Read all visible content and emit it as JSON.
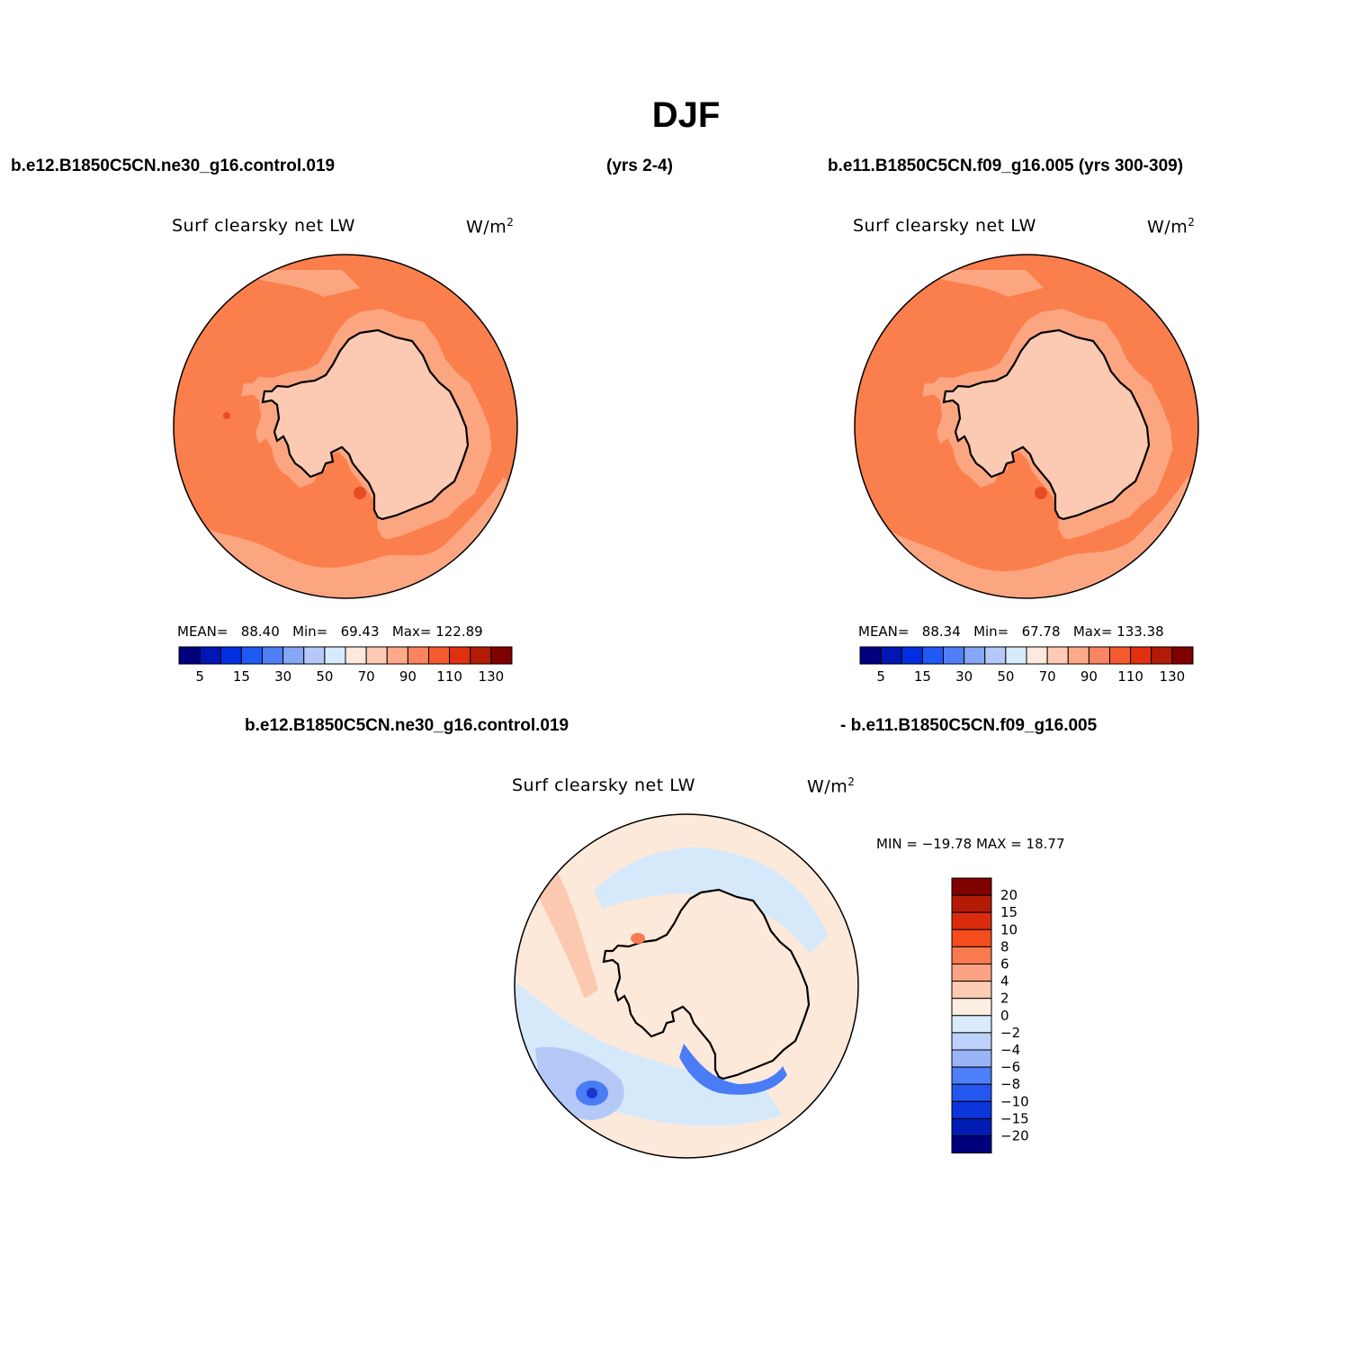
{
  "title": "DJF",
  "case1": "b.e12.B1850C5CN.ne30_g16.control.019",
  "case1_years": "(yrs 2-4)",
  "case2": "b.e11.B1850C5CN.f09_g16.005 (yrs 300-309)",
  "diff_left": "b.e12.B1850C5CN.ne30_g16.control.019",
  "diff_right": "- b.e11.B1850C5CN.f09_g16.005",
  "panels": [
    {
      "variable": "Surf clearsky net LW",
      "units": "W/m",
      "units_sup": "2",
      "stats": {
        "mean_label": "MEAN=",
        "mean": "88.40",
        "min_label": "Min=",
        "min": "69.43",
        "max_label": "Max=",
        "max": "122.89"
      }
    },
    {
      "variable": "Surf clearsky net LW",
      "units": "W/m",
      "units_sup": "2",
      "stats": {
        "mean_label": "MEAN=",
        "mean": "88.34",
        "min_label": "Min=",
        "min": "67.78",
        "max_label": "Max=",
        "max": "133.38"
      }
    }
  ],
  "diff_panel": {
    "variable": "Surf clearsky net LW",
    "units": "W/m",
    "units_sup": "2",
    "minmax": "MIN = −19.78 MAX =   18.77"
  },
  "colorbar_h": {
    "colors": [
      "#00007f",
      "#0017b4",
      "#002ee0",
      "#1f5af5",
      "#4f7ff8",
      "#86a6f6",
      "#b4c9f9",
      "#d7eafc",
      "#fde9db",
      "#fdcbb3",
      "#fca98a",
      "#fa845f",
      "#f65b30",
      "#e03010",
      "#b31b06",
      "#800000"
    ],
    "labels": [
      "5",
      "15",
      "30",
      "50",
      "70",
      "90",
      "110",
      "130"
    ]
  },
  "colorbar_v": {
    "colors": [
      "#800000",
      "#b31b06",
      "#da2c0c",
      "#f54d1e",
      "#f97a4e",
      "#fca383",
      "#fdcab2",
      "#fdeee2",
      "#d8eafc",
      "#bcd2fa",
      "#99b5f7",
      "#4c7ff8",
      "#2456f0",
      "#0c36dc",
      "#001cb4",
      "#00007f"
    ],
    "labels": [
      "20",
      "15",
      "10",
      "8",
      "6",
      "4",
      "2",
      "0",
      "−2",
      "−4",
      "−6",
      "−8",
      "−10",
      "−15",
      "−20"
    ]
  },
  "map_colors": {
    "ocean_warm": "#fa7f4d",
    "ocean_mid": "#fba680",
    "coast_light": "#fccab2",
    "interior": "#fccab1",
    "hot_spot": "#e84c22",
    "diff_base": "#fde9da",
    "diff_pos": "#fcc9b0",
    "diff_neg_light": "#d6e9fb",
    "diff_neg_mid": "#b4c9f8",
    "diff_neg_strong": "#4a7cf5",
    "diff_neg_dark": "#1b36c8"
  }
}
